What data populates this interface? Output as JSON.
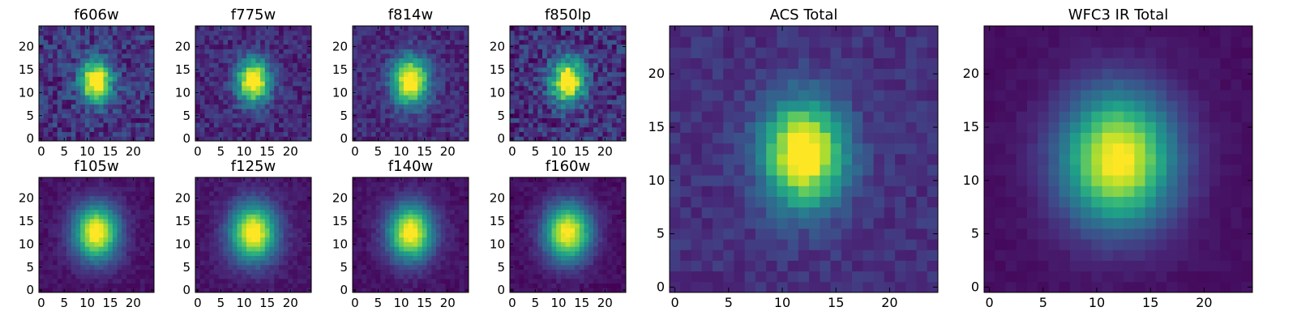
{
  "colormap": [
    "#440154",
    "#482878",
    "#3e4a89",
    "#31688e",
    "#26828e",
    "#1f9e89",
    "#35b779",
    "#6dcd59",
    "#b4de2c",
    "#fde725"
  ],
  "chart_data": [
    {
      "type": "heatmap",
      "title": "f606w",
      "n": 25,
      "cx": 12.0,
      "cy": 12.5,
      "sx": 2.4,
      "sy": 3.2,
      "bg": 0.15,
      "noise": 0.14,
      "peak": 1.0,
      "seed": 11,
      "xticks": [
        0,
        5,
        10,
        15,
        20
      ],
      "yticks": [
        0,
        5,
        10,
        15,
        20
      ]
    },
    {
      "type": "heatmap",
      "title": "f775w",
      "n": 25,
      "cx": 12.0,
      "cy": 12.5,
      "sx": 2.5,
      "sy": 3.3,
      "bg": 0.12,
      "noise": 0.1,
      "peak": 1.0,
      "seed": 23,
      "xticks": [
        0,
        5,
        10,
        15,
        20
      ],
      "yticks": [
        0,
        5,
        10,
        15,
        20
      ]
    },
    {
      "type": "heatmap",
      "title": "f814w",
      "n": 25,
      "cx": 12.0,
      "cy": 12.5,
      "sx": 2.7,
      "sy": 3.6,
      "bg": 0.12,
      "noise": 0.09,
      "peak": 1.0,
      "seed": 37,
      "xticks": [
        0,
        5,
        10,
        15,
        20
      ],
      "yticks": [
        0,
        5,
        10,
        15,
        20
      ]
    },
    {
      "type": "heatmap",
      "title": "f850lp",
      "n": 25,
      "cx": 12.0,
      "cy": 12.5,
      "sx": 2.5,
      "sy": 3.3,
      "bg": 0.14,
      "noise": 0.15,
      "peak": 1.0,
      "seed": 41,
      "xticks": [
        0,
        5,
        10,
        15,
        20
      ],
      "yticks": [
        0,
        5,
        10,
        15,
        20
      ]
    },
    {
      "type": "heatmap",
      "title": "f105w",
      "n": 25,
      "cx": 12.0,
      "cy": 12.5,
      "sx": 3.4,
      "sy": 4.2,
      "bg": 0.05,
      "noise": 0.04,
      "peak": 1.0,
      "seed": 53,
      "xticks": [
        0,
        5,
        10,
        15,
        20
      ],
      "yticks": [
        0,
        5,
        10,
        15,
        20
      ]
    },
    {
      "type": "heatmap",
      "title": "f125w",
      "n": 25,
      "cx": 12.0,
      "cy": 12.5,
      "sx": 3.5,
      "sy": 4.3,
      "bg": 0.06,
      "noise": 0.04,
      "peak": 1.0,
      "seed": 67,
      "xticks": [
        0,
        5,
        10,
        15,
        20
      ],
      "yticks": [
        0,
        5,
        10,
        15,
        20
      ]
    },
    {
      "type": "heatmap",
      "title": "f140w",
      "n": 25,
      "cx": 12.0,
      "cy": 12.5,
      "sx": 3.4,
      "sy": 4.2,
      "bg": 0.05,
      "noise": 0.04,
      "peak": 1.0,
      "seed": 79,
      "xticks": [
        0,
        5,
        10,
        15,
        20
      ],
      "yticks": [
        0,
        5,
        10,
        15,
        20
      ]
    },
    {
      "type": "heatmap",
      "title": "f160w",
      "n": 25,
      "cx": 12.0,
      "cy": 12.5,
      "sx": 3.5,
      "sy": 4.3,
      "bg": 0.04,
      "noise": 0.04,
      "peak": 1.0,
      "seed": 83,
      "xticks": [
        0,
        5,
        10,
        15,
        20
      ],
      "yticks": [
        0,
        5,
        10,
        15,
        20
      ]
    },
    {
      "type": "heatmap",
      "title": "ACS Total",
      "n": 25,
      "cx": 12.0,
      "cy": 12.5,
      "sx": 2.6,
      "sy": 3.4,
      "bg": 0.14,
      "noise": 0.06,
      "peak": 1.0,
      "seed": 97,
      "xticks": [
        0,
        5,
        10,
        15,
        20
      ],
      "yticks": [
        0,
        5,
        10,
        15,
        20
      ]
    },
    {
      "type": "heatmap",
      "title": "WFC3 IR Total",
      "n": 25,
      "cx": 12.0,
      "cy": 12.0,
      "sx": 3.6,
      "sy": 4.3,
      "bg": 0.04,
      "noise": 0.02,
      "peak": 1.0,
      "seed": 101,
      "xticks": [
        0,
        5,
        10,
        15,
        20
      ],
      "yticks": [
        0,
        5,
        10,
        15,
        20
      ]
    }
  ]
}
